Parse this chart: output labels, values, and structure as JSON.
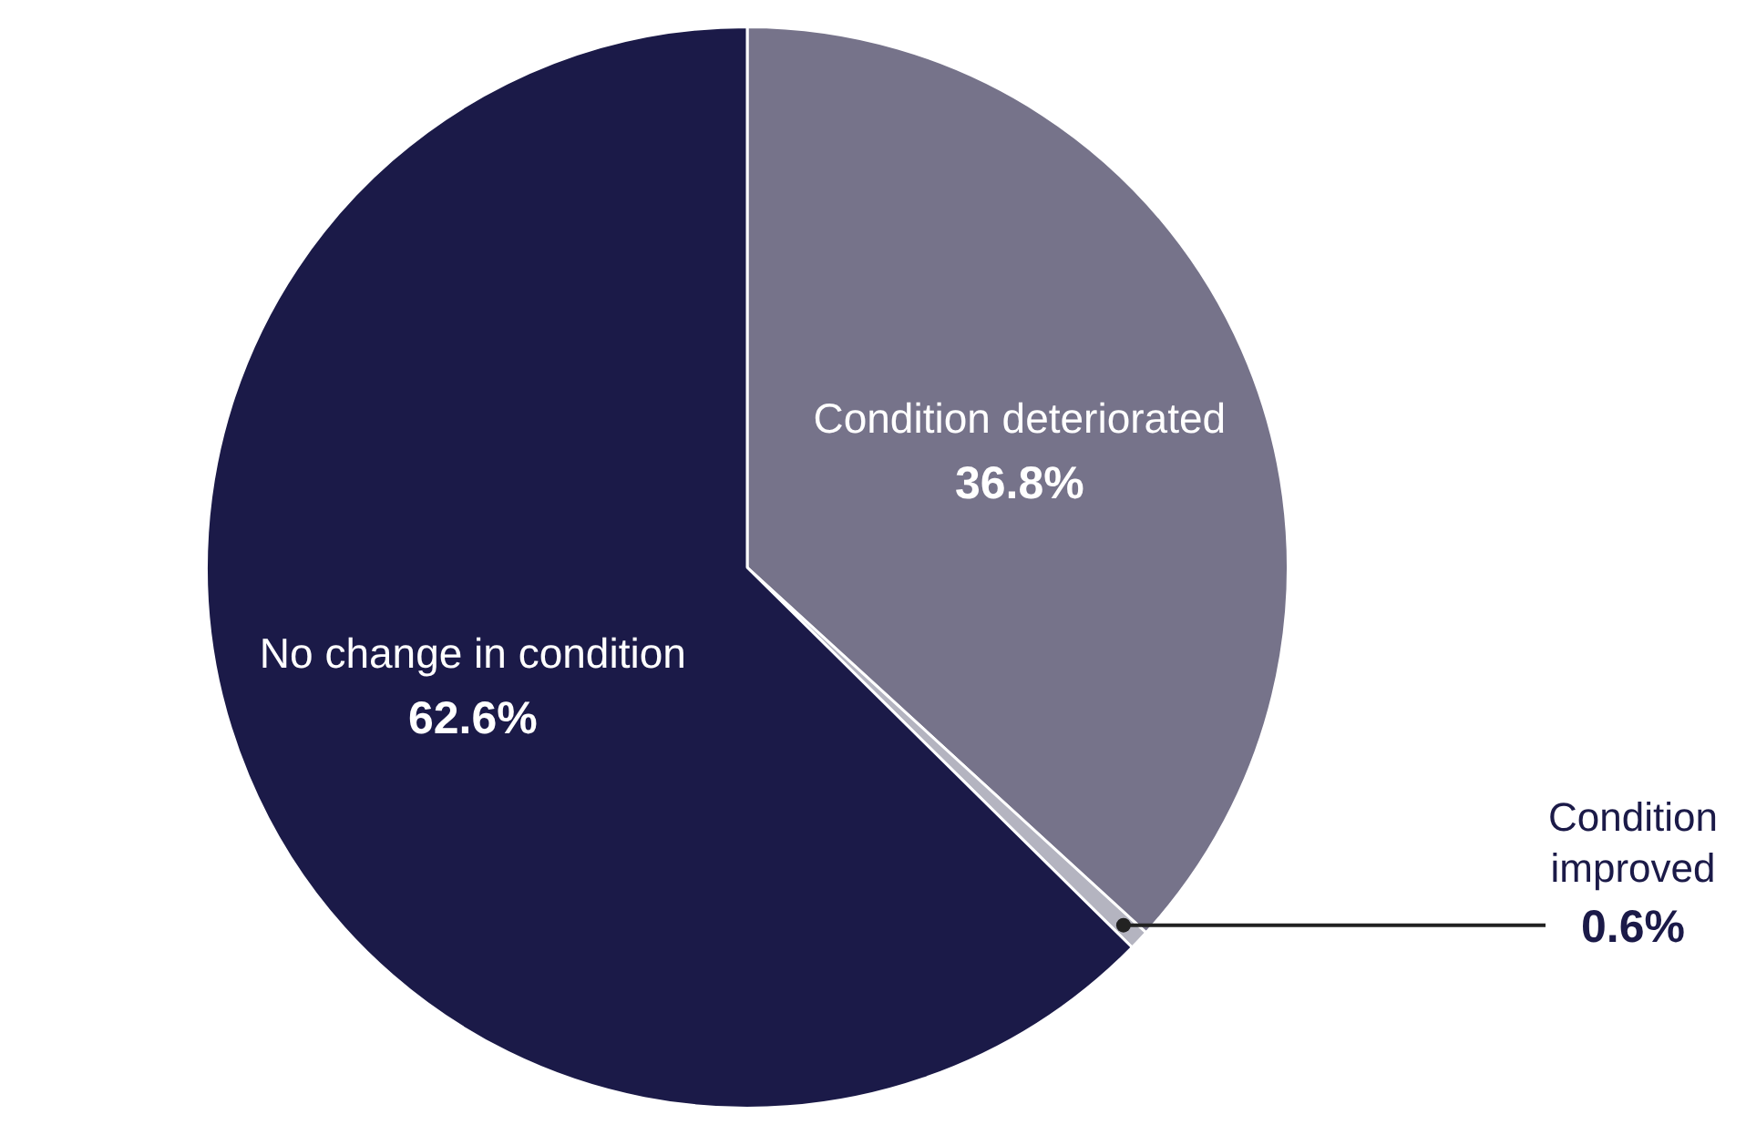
{
  "chart_data": {
    "type": "pie",
    "categories": [
      "Condition deteriorated",
      "Condition improved",
      "No change in condition"
    ],
    "values": [
      36.8,
      0.6,
      62.6
    ],
    "colors": [
      "#76738a",
      "#b4b4c0",
      "#1b1a48"
    ],
    "value_labels": [
      "36.8%",
      "0.6%",
      "62.6%"
    ],
    "legend": false
  }
}
